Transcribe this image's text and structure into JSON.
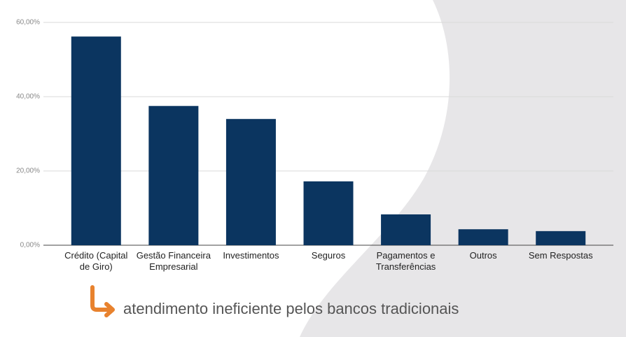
{
  "chart_data": {
    "type": "bar",
    "categories": [
      "Crédito (Capital de Giro)",
      "Gestão Financeira Empresarial",
      "Investimentos",
      "Seguros",
      "Pagamentos e Transferências",
      "Outros",
      "Sem Respostas"
    ],
    "values": [
      56.2,
      37.5,
      34.0,
      17.2,
      8.3,
      4.3,
      3.8
    ],
    "color": "#0b3560",
    "ylim": [
      0,
      60
    ],
    "yticks": [
      {
        "value": 0,
        "label": "0,00%"
      },
      {
        "value": 20,
        "label": "20,00%"
      },
      {
        "value": 40,
        "label": "40,00%"
      },
      {
        "value": 60,
        "label": "60,00%"
      }
    ],
    "grid": true,
    "annotation": "atendimento ineficiente pelos bancos tradicionais"
  }
}
